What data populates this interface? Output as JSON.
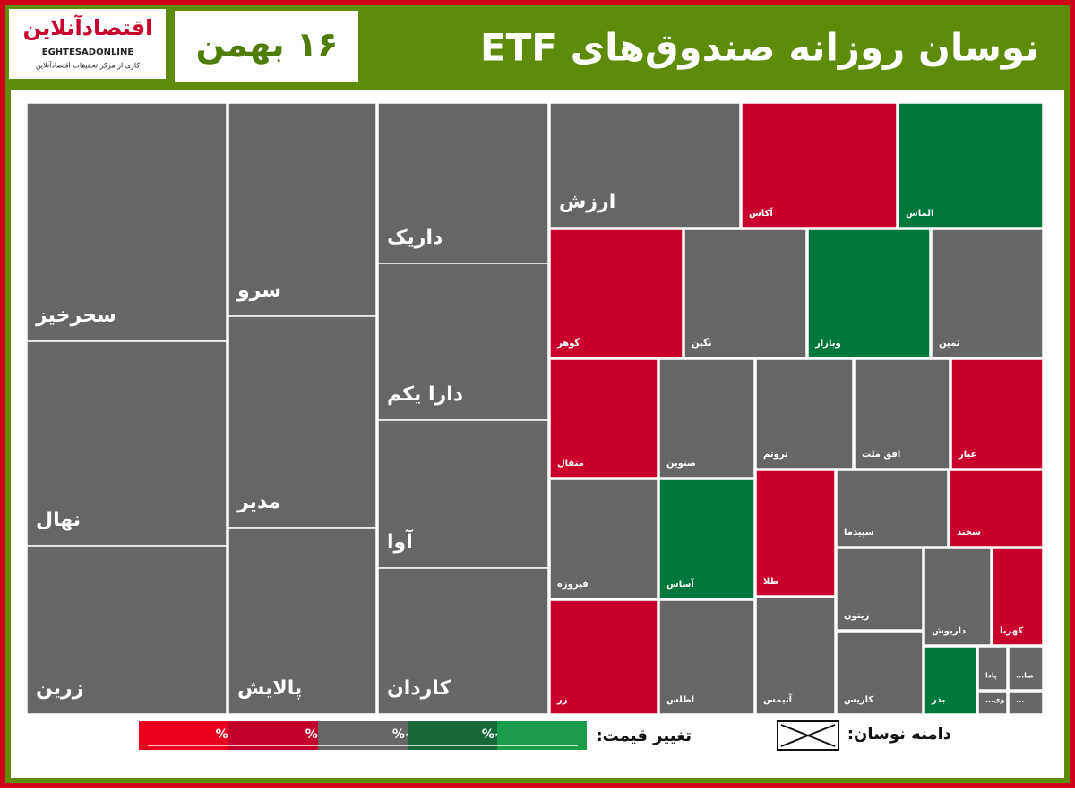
{
  "header": {
    "title": "نوسان روزانه صندوق‌های ETF",
    "date": "۱۶ بهمن",
    "logo": "اقتصادآنلاین",
    "logo_latin": "EGHTESADONLINE",
    "logo_sub": "کاری از مرکز تحقیقات اقتصادآنلاین"
  },
  "chart_data": {
    "type": "treemap",
    "tiles": [
      {
        "label": "سحرخیز",
        "color": "#666666"
      },
      {
        "label": "نهال",
        "color": "#666666"
      },
      {
        "label": "زرین",
        "color": "#666666"
      },
      {
        "label": "سرو",
        "color": "#666666"
      },
      {
        "label": "مدیر",
        "color": "#666666"
      },
      {
        "label": "پالایش",
        "color": "#666666"
      },
      {
        "label": "داریک",
        "color": "#666666"
      },
      {
        "label": "دارا یکم",
        "color": "#666666"
      },
      {
        "label": "آوا",
        "color": "#666666"
      },
      {
        "label": "کاردان",
        "color": "#666666"
      },
      {
        "label": "ارزش",
        "color": "#666666"
      },
      {
        "label": "آکاس",
        "color": "#c8002b"
      },
      {
        "label": "الماس",
        "color": "#00773b"
      },
      {
        "label": "گوهر",
        "color": "#c8002b"
      },
      {
        "label": "نگین",
        "color": "#666666"
      },
      {
        "label": "وبازار",
        "color": "#00773b"
      },
      {
        "label": "ثمین",
        "color": "#666666"
      },
      {
        "label": "مثقال",
        "color": "#c8002b"
      },
      {
        "label": "صنوین",
        "color": "#666666"
      },
      {
        "label": "ثروتم",
        "color": "#666666"
      },
      {
        "label": "افق ملت",
        "color": "#666666"
      },
      {
        "label": "عیار",
        "color": "#c8002b"
      },
      {
        "label": "فیروزه",
        "color": "#666666"
      },
      {
        "label": "آساس",
        "color": "#00773b"
      },
      {
        "label": "طلا",
        "color": "#c8002b"
      },
      {
        "label": "سپیدما",
        "color": "#666666"
      },
      {
        "label": "سخند",
        "color": "#c8002b"
      },
      {
        "label": "زیتون",
        "color": "#666666"
      },
      {
        "label": "داریوش",
        "color": "#666666"
      },
      {
        "label": "کهربا",
        "color": "#c8002b"
      },
      {
        "label": "زر",
        "color": "#c8002b"
      },
      {
        "label": "اطلس",
        "color": "#666666"
      },
      {
        "label": "آتیمس",
        "color": "#666666"
      },
      {
        "label": "کاریس",
        "color": "#666666"
      },
      {
        "label": "بذر",
        "color": "#00773b"
      },
      {
        "label": "پادا",
        "color": "#666666"
      },
      {
        "label": "صا...",
        "color": "#666666"
      },
      {
        "label": "وی...",
        "color": "#666666"
      },
      {
        "label": "...",
        "color": "#666666"
      }
    ]
  },
  "legend": {
    "price_title": "تغییر قیمت:",
    "scale": [
      {
        "label": "%-۳",
        "color": "#e8001c"
      },
      {
        "label": "%-۱",
        "color": "#c0002a"
      },
      {
        "label": "%+۱",
        "color": "#666666"
      },
      {
        "label": "%+۳",
        "color": "#17693a"
      },
      {
        "label": null,
        "color": "#1b9c4a"
      }
    ],
    "range_title": "دامنه نوسان:"
  }
}
